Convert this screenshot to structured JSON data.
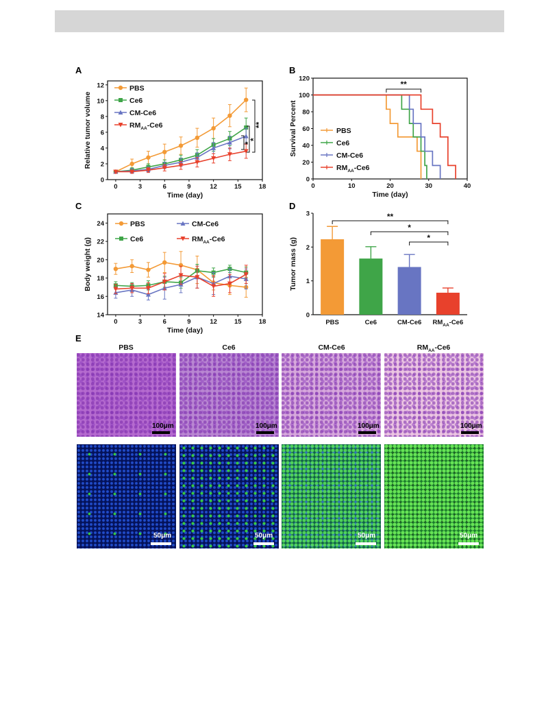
{
  "colors": {
    "PBS": "#f39a36",
    "Ce6": "#3fa548",
    "CM-Ce6": "#6875c2",
    "RM_AA-Ce6": "#e8412c"
  },
  "panels": {
    "A": "A",
    "B": "B",
    "C": "C",
    "D": "D",
    "E": "E"
  },
  "chart_data": [
    {
      "panel": "A",
      "type": "line",
      "xlabel": "Time (day)",
      "ylabel": "Relative tumor volume",
      "xlim": [
        -1,
        18
      ],
      "ylim": [
        0,
        12.5
      ],
      "xticks": [
        0,
        3,
        6,
        9,
        12,
        15,
        18
      ],
      "yticks": [
        0,
        2,
        4,
        6,
        8,
        10,
        12
      ],
      "x": [
        0,
        2,
        4,
        6,
        8,
        10,
        12,
        14,
        16
      ],
      "legend": "top-left",
      "series": [
        {
          "name": "PBS",
          "sub": "",
          "values": [
            1.0,
            2.0,
            2.8,
            3.5,
            4.3,
            5.3,
            6.5,
            8.1,
            10.1
          ],
          "err": [
            0.2,
            0.6,
            0.8,
            1.0,
            1.1,
            1.2,
            1.3,
            1.4,
            1.5
          ]
        },
        {
          "name": "Ce6",
          "sub": "",
          "values": [
            1.0,
            1.2,
            1.6,
            2.0,
            2.5,
            3.1,
            4.4,
            5.2,
            6.6
          ],
          "err": [
            0.2,
            0.3,
            0.4,
            0.5,
            0.6,
            0.7,
            0.8,
            0.9,
            1.2
          ]
        },
        {
          "name": "CM-Ce6",
          "sub": "",
          "values": [
            1.0,
            1.1,
            1.3,
            1.8,
            2.2,
            2.8,
            4.0,
            4.7,
            5.5
          ],
          "err": [
            0.2,
            0.3,
            0.3,
            0.4,
            0.5,
            0.6,
            0.7,
            0.8,
            1.0
          ]
        },
        {
          "name": "RM",
          "sub": "AA",
          "suffix": "-Ce6",
          "values": [
            1.0,
            1.0,
            1.2,
            1.5,
            1.8,
            2.2,
            2.7,
            3.2,
            3.6
          ],
          "err": [
            0.2,
            0.2,
            0.3,
            0.4,
            0.5,
            0.6,
            0.6,
            0.8,
            0.9
          ]
        }
      ],
      "significance": [
        "*",
        "*",
        "**"
      ]
    },
    {
      "panel": "B",
      "type": "line",
      "xlabel": "Time (day)",
      "ylabel": "Survival Percent",
      "xlim": [
        0,
        40
      ],
      "ylim": [
        0,
        120
      ],
      "xticks": [
        0,
        10,
        20,
        30,
        40
      ],
      "yticks": [
        0,
        20,
        40,
        60,
        80,
        100,
        120
      ],
      "legend": "bottom-left",
      "significance": "**",
      "series": [
        {
          "name": "PBS",
          "sub": "",
          "steps": [
            [
              0,
              100
            ],
            [
              19,
              100
            ],
            [
              19,
              83
            ],
            [
              20,
              83
            ],
            [
              20,
              66
            ],
            [
              22,
              66
            ],
            [
              22,
              50
            ],
            [
              27,
              50
            ],
            [
              27,
              33
            ],
            [
              28,
              33
            ],
            [
              28,
              0
            ]
          ]
        },
        {
          "name": "Ce6",
          "sub": "",
          "steps": [
            [
              0,
              100
            ],
            [
              23,
              100
            ],
            [
              23,
              83
            ],
            [
              25,
              83
            ],
            [
              25,
              66
            ],
            [
              26,
              66
            ],
            [
              26,
              50
            ],
            [
              28,
              50
            ],
            [
              28,
              33
            ],
            [
              29,
              33
            ],
            [
              29,
              16
            ],
            [
              29.5,
              16
            ],
            [
              29.5,
              0
            ]
          ]
        },
        {
          "name": "CM-Ce6",
          "sub": "",
          "steps": [
            [
              0,
              100
            ],
            [
              25,
              100
            ],
            [
              25,
              83
            ],
            [
              26,
              83
            ],
            [
              26,
              66
            ],
            [
              28,
              66
            ],
            [
              28,
              50
            ],
            [
              29,
              50
            ],
            [
              29,
              33
            ],
            [
              31,
              33
            ],
            [
              31,
              16
            ],
            [
              33,
              16
            ],
            [
              33,
              0
            ]
          ]
        },
        {
          "name": "RM",
          "sub": "AA",
          "suffix": "-Ce6",
          "steps": [
            [
              0,
              100
            ],
            [
              28,
              100
            ],
            [
              28,
              83
            ],
            [
              31,
              83
            ],
            [
              31,
              66
            ],
            [
              33,
              66
            ],
            [
              33,
              50
            ],
            [
              35,
              50
            ],
            [
              35,
              16
            ],
            [
              37,
              16
            ],
            [
              37,
              0
            ]
          ]
        }
      ]
    },
    {
      "panel": "C",
      "type": "line",
      "xlabel": "Time (day)",
      "ylabel": "Body weight (g)",
      "xlim": [
        -1,
        18
      ],
      "ylim": [
        14,
        25
      ],
      "xticks": [
        0,
        3,
        6,
        9,
        12,
        15,
        18
      ],
      "yticks": [
        14,
        16,
        18,
        20,
        22,
        24
      ],
      "x": [
        0,
        2,
        4,
        6,
        8,
        10,
        12,
        14,
        16
      ],
      "legend": "top",
      "series": [
        {
          "name": "PBS",
          "sub": "",
          "values": [
            19.0,
            19.3,
            18.9,
            19.7,
            19.4,
            18.9,
            17.5,
            17.2,
            17.0
          ],
          "err": [
            0.6,
            0.7,
            0.8,
            1.1,
            1.5,
            1.5,
            0.8,
            1.0,
            1.1
          ]
        },
        {
          "name": "Ce6",
          "sub": "",
          "values": [
            17.2,
            17.1,
            17.2,
            17.6,
            17.5,
            18.8,
            18.6,
            19.0,
            18.6
          ],
          "err": [
            0.4,
            0.4,
            0.5,
            0.6,
            0.6,
            0.7,
            0.5,
            0.4,
            0.6
          ]
        },
        {
          "name": "CM-Ce6",
          "sub": "",
          "values": [
            16.4,
            16.7,
            16.2,
            16.9,
            17.3,
            18.1,
            17.4,
            18.2,
            17.9
          ],
          "err": [
            0.6,
            0.7,
            0.6,
            1.2,
            0.9,
            1.2,
            1.2,
            0.8,
            1.1
          ]
        },
        {
          "name": "RM",
          "sub": "AA",
          "suffix": "-Ce6",
          "values": [
            16.8,
            16.9,
            16.9,
            17.6,
            18.3,
            18.1,
            17.1,
            17.4,
            18.4
          ],
          "err": [
            0.5,
            0.5,
            0.6,
            0.9,
            1.0,
            1.2,
            1.1,
            1.0,
            1.0
          ]
        }
      ]
    },
    {
      "panel": "D",
      "type": "bar",
      "ylabel": "Tumor mass (g)",
      "ylim": [
        0,
        3
      ],
      "yticks": [
        0,
        1,
        2,
        3
      ],
      "categories": [
        {
          "name": "PBS",
          "sub": ""
        },
        {
          "name": "Ce6",
          "sub": ""
        },
        {
          "name": "CM-Ce6",
          "sub": ""
        },
        {
          "name": "RM",
          "sub": "AA",
          "suffix": "-Ce6"
        }
      ],
      "values": [
        2.23,
        1.66,
        1.41,
        0.65
      ],
      "err": [
        0.38,
        0.35,
        0.37,
        0.14
      ],
      "significance": [
        "**",
        "*",
        "*"
      ]
    }
  ],
  "panel_e": {
    "columns": [
      {
        "name": "PBS",
        "sub": ""
      },
      {
        "name": "Ce6",
        "sub": ""
      },
      {
        "name": "CM-Ce6",
        "sub": ""
      },
      {
        "name": "RM",
        "sub": "AA",
        "suffix": "-Ce6"
      }
    ],
    "he_scale": "100μm",
    "fl_scale": "50μm"
  }
}
